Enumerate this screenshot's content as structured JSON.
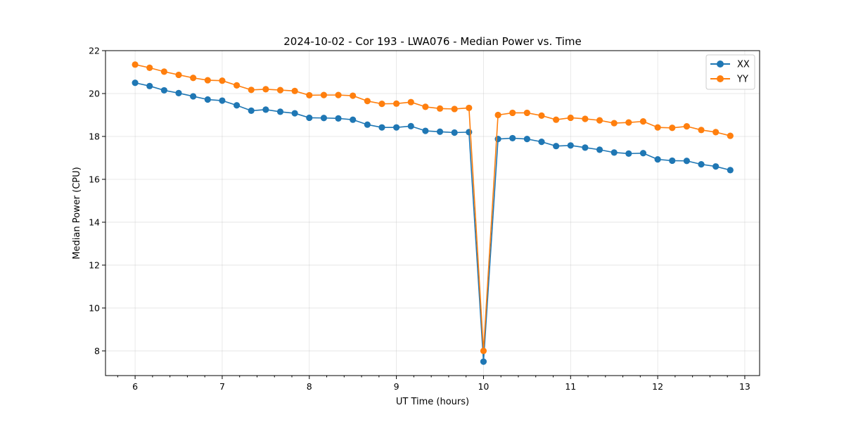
{
  "chart_data": {
    "type": "line",
    "title": "2024-10-02 - Cor 193 - LWA076 - Median Power vs. Time",
    "xlabel": "UT Time (hours)",
    "ylabel": "Median Power (CPU)",
    "xlim": [
      5.66,
      13.17
    ],
    "ylim": [
      6.85,
      22.0
    ],
    "xticks": [
      6,
      7,
      8,
      9,
      10,
      11,
      12,
      13
    ],
    "yticks": [
      8,
      10,
      12,
      14,
      16,
      18,
      20,
      22
    ],
    "grid": true,
    "legend_position": "top-right",
    "x": [
      6.0,
      6.1667,
      6.3333,
      6.5,
      6.6667,
      6.8333,
      7.0,
      7.1667,
      7.3333,
      7.5,
      7.6667,
      7.8333,
      8.0,
      8.1667,
      8.3333,
      8.5,
      8.6667,
      8.8333,
      9.0,
      9.1667,
      9.3333,
      9.5,
      9.6667,
      9.8333,
      10.0,
      10.1667,
      10.3333,
      10.5,
      10.6667,
      10.8333,
      11.0,
      11.1667,
      11.3333,
      11.5,
      11.6667,
      11.8333,
      12.0,
      12.1667,
      12.3333,
      12.5,
      12.6667,
      12.8333
    ],
    "series": [
      {
        "name": "XX",
        "color": "#1f77b4",
        "values": [
          20.5,
          20.35,
          20.15,
          20.02,
          19.87,
          19.72,
          19.67,
          19.45,
          19.2,
          19.25,
          19.15,
          19.08,
          18.87,
          18.86,
          18.84,
          18.78,
          18.55,
          18.42,
          18.42,
          18.48,
          18.26,
          18.22,
          18.18,
          18.2,
          7.5,
          17.88,
          17.92,
          17.88,
          17.75,
          17.55,
          17.58,
          17.48,
          17.38,
          17.25,
          17.2,
          17.22,
          16.93,
          16.87,
          16.86,
          16.7,
          16.6,
          16.43
        ]
      },
      {
        "name": "YY",
        "color": "#ff7f0e",
        "values": [
          21.35,
          21.2,
          21.02,
          20.87,
          20.73,
          20.62,
          20.6,
          20.38,
          20.17,
          20.2,
          20.16,
          20.12,
          19.92,
          19.93,
          19.93,
          19.9,
          19.65,
          19.52,
          19.53,
          19.6,
          19.38,
          19.3,
          19.28,
          19.33,
          8.0,
          19.0,
          19.1,
          19.1,
          18.97,
          18.78,
          18.87,
          18.82,
          18.75,
          18.62,
          18.65,
          18.7,
          18.42,
          18.4,
          18.47,
          18.3,
          18.2,
          18.03
        ]
      }
    ]
  }
}
